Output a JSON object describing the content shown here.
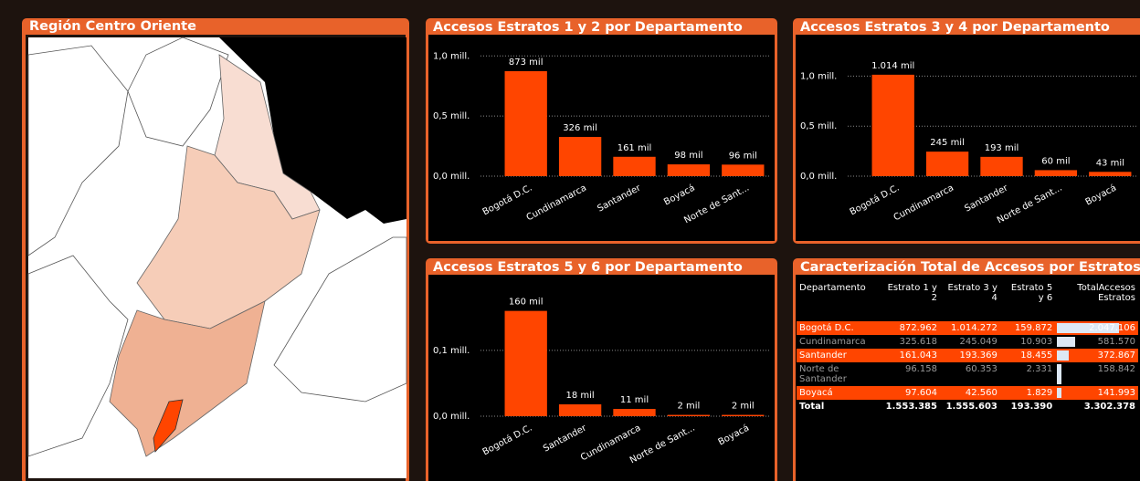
{
  "map": {
    "title": "Región Centro Oriente"
  },
  "chart_data": [
    {
      "type": "bar",
      "title": "Accesos Estratos 1 y 2 por Departamento",
      "categories": [
        "Bogotá D.C.",
        "Cundinamarca",
        "Santander",
        "Boyacá",
        "Norte de Sant..."
      ],
      "values": [
        0.873,
        0.326,
        0.161,
        0.098,
        0.096
      ],
      "value_labels": [
        "873 mil",
        "326 mil",
        "161 mil",
        "98 mil",
        "96 mil"
      ],
      "color": "#ff4500",
      "ylim": [
        0,
        1.04
      ],
      "yticks": [
        {
          "value": 0,
          "label": "0,0 mill."
        },
        {
          "value": 0.5,
          "label": "0,5 mill."
        },
        {
          "value": 1,
          "label": "1,0 mill."
        }
      ],
      "grid": true
    },
    {
      "type": "bar",
      "title": "Accesos Estratos 3 y 4 por Departamento",
      "categories": [
        "Bogotá D.C.",
        "Cundinamarca",
        "Santander",
        "Norte de Sant...",
        "Boyacá"
      ],
      "values": [
        1.014,
        0.245,
        0.193,
        0.06,
        0.043
      ],
      "value_labels": [
        "1.014 mil",
        "245 mil",
        "193 mil",
        "60 mil",
        "43 mil"
      ],
      "color": "#ff4500",
      "ylim": [
        0,
        1.25
      ],
      "yticks": [
        {
          "value": 0,
          "label": "0,0 mill."
        },
        {
          "value": 0.5,
          "label": "0,5 mill."
        },
        {
          "value": 1,
          "label": "1,0 mill."
        }
      ],
      "grid": true
    },
    {
      "type": "bar",
      "title": "Accesos Estratos 5 y 6 por Departamento",
      "categories": [
        "Bogotá D.C.",
        "Santander",
        "Cundinamarca",
        "Norte de Sant...",
        "Boyacá"
      ],
      "values": [
        0.16,
        0.018,
        0.011,
        0.002,
        0.002
      ],
      "value_labels": [
        "160 mil",
        "18 mil",
        "11 mil",
        "2 mil",
        "2 mil"
      ],
      "color": "#ff4500",
      "ylim": [
        0,
        0.19
      ],
      "yticks": [
        {
          "value": 0,
          "label": "0,0 mill."
        },
        {
          "value": 0.1,
          "label": "0,1 mill."
        }
      ],
      "grid": true
    }
  ],
  "table": {
    "title": "Caracterización Total de Accesos por Estratos",
    "columns": [
      "Departamento",
      "Estrato 1 y 2",
      "Estrato 3 y 4",
      "Estrato 5 y 6",
      "TotalAccesos Estratos"
    ],
    "rows": [
      [
        "Bogotá D.C.",
        "872.962",
        "1.014.272",
        "159.872",
        "2.047.106"
      ],
      [
        "Cundinamarca",
        "325.618",
        "245.049",
        "10.903",
        "581.570"
      ],
      [
        "Santander",
        "161.043",
        "193.369",
        "18.455",
        "372.867"
      ],
      [
        "Norte de Santander",
        "96.158",
        "60.353",
        "2.331",
        "158.842"
      ],
      [
        "Boyacá",
        "97.604",
        "42.560",
        "1.829",
        "141.993"
      ]
    ],
    "total": [
      "Total",
      "1.553.385",
      "1.555.603",
      "193.390",
      "3.302.378"
    ]
  }
}
